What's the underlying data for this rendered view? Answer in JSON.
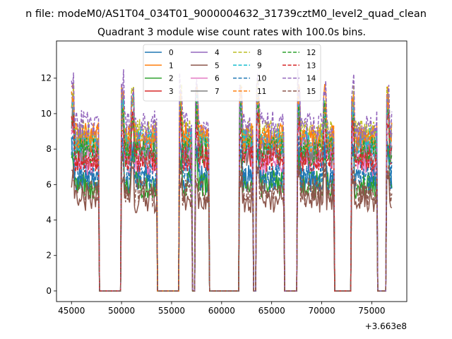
{
  "figure": {
    "suptitle": "n file: modeM0/AS1T04_034T01_9000004632_31739cztM0_level2_quad_clean",
    "title": "Quadrant 3 module wise count rates with 100.0s bins."
  },
  "chart_data": {
    "type": "line",
    "title": "Quadrant 3 module wise count rates with 100.0s bins.",
    "xlabel": "",
    "ylabel": "",
    "x_offset_label": "+3.663e8",
    "xlim": [
      43500,
      78500
    ],
    "ylim": [
      -0.6,
      14.1
    ],
    "x_ticks": [
      45000,
      50000,
      55000,
      60000,
      65000,
      70000,
      75000
    ],
    "y_ticks": [
      0,
      2,
      4,
      6,
      8,
      10,
      12
    ],
    "grid": false,
    "legend": {
      "placement": "top-center",
      "columns": 4
    },
    "active_intervals": [
      [
        45000,
        47700
      ],
      [
        50000,
        50900
      ],
      [
        51000,
        53500
      ],
      [
        55800,
        57000
      ],
      [
        57400,
        58700
      ],
      [
        61800,
        63100
      ],
      [
        63500,
        66200
      ],
      [
        67600,
        70100
      ],
      [
        70200,
        71200
      ],
      [
        73000,
        75500
      ],
      [
        76500,
        77000
      ]
    ],
    "series": [
      {
        "name": "0",
        "color": "#1f77b4",
        "style": "solid",
        "level": 6.3
      },
      {
        "name": "1",
        "color": "#ff7f0e",
        "style": "solid",
        "level": 8.7
      },
      {
        "name": "2",
        "color": "#2ca02c",
        "style": "solid",
        "level": 6.0
      },
      {
        "name": "3",
        "color": "#d62728",
        "style": "solid",
        "level": 7.6
      },
      {
        "name": "4",
        "color": "#9467bd",
        "style": "solid",
        "level": 8.3
      },
      {
        "name": "5",
        "color": "#8c564b",
        "style": "solid",
        "level": 5.2
      },
      {
        "name": "6",
        "color": "#e377c2",
        "style": "solid",
        "level": 7.3
      },
      {
        "name": "7",
        "color": "#7f7f7f",
        "style": "solid",
        "level": 7.8
      },
      {
        "name": "8",
        "color": "#bcbd22",
        "style": "dashed",
        "level": 8.9
      },
      {
        "name": "9",
        "color": "#17becf",
        "style": "dashed",
        "level": 8.4
      },
      {
        "name": "10",
        "color": "#1f77b4",
        "style": "dashed",
        "level": 6.5
      },
      {
        "name": "11",
        "color": "#ff7f0e",
        "style": "dashed",
        "level": 8.6
      },
      {
        "name": "12",
        "color": "#2ca02c",
        "style": "dashed",
        "level": 7.9
      },
      {
        "name": "13",
        "color": "#d62728",
        "style": "dashed",
        "level": 7.5
      },
      {
        "name": "14",
        "color": "#9467bd",
        "style": "dashed",
        "level": 9.4
      },
      {
        "name": "15",
        "color": "#8c564b",
        "style": "dashed",
        "level": 5.6
      }
    ]
  }
}
